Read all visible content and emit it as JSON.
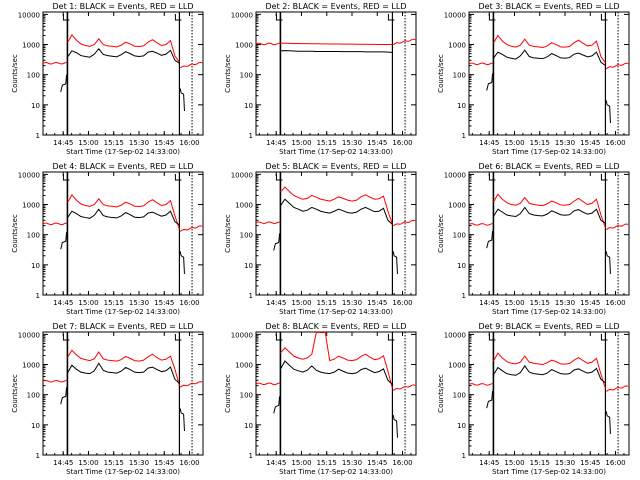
{
  "style": {
    "events_color": "#000000",
    "lld_color": "#ff0000",
    "axis_color": "#000000",
    "background": "#ffffff"
  },
  "chart_data": [
    {
      "type": "line",
      "title": "Det 1: BLACK = Events, RED = LLD",
      "xlabel": "Start Time (17-Sep-02 14:33:00)",
      "ylabel": "Counts/sec",
      "x_ticks": [
        "14:45",
        "15:00",
        "15:15",
        "15:30",
        "15:45",
        "16:00"
      ],
      "y_ticks": [
        "1",
        "10",
        "100",
        "1000",
        "10000"
      ],
      "xlim_minutes": [
        0,
        95
      ],
      "ylim": [
        1,
        12000
      ],
      "y_scale": "log",
      "markers_minutes": [
        14.5,
        81,
        88.5
      ],
      "pre_segment": {
        "events": 45,
        "lld": 240
      },
      "main_segment": {
        "events": [
          380,
          620,
          540,
          430,
          400,
          380,
          480,
          720,
          470,
          430,
          410,
          390,
          460,
          580,
          500,
          420,
          400,
          420,
          560,
          600,
          520,
          440,
          480,
          640,
          300,
          240
        ],
        "lld": [
          1150,
          2100,
          1400,
          1050,
          930,
          870,
          1000,
          1550,
          1000,
          900,
          880,
          830,
          950,
          1200,
          1050,
          880,
          860,
          900,
          1200,
          1450,
          1150,
          930,
          1000,
          1350,
          420,
          260
        ]
      },
      "post_segment": {
        "events": 25,
        "lld": 170
      }
    },
    {
      "type": "line",
      "title": "Det 2: BLACK = Events, RED = LLD",
      "xlabel": "Start Time (17-Sep-02 14:33:00)",
      "ylabel": "Counts/sec",
      "x_ticks": [
        "14:45",
        "15:00",
        "15:15",
        "15:30",
        "15:45",
        "16:00"
      ],
      "y_ticks": [
        "1",
        "10",
        "100",
        "1000",
        "10000"
      ],
      "xlim_minutes": [
        0,
        95
      ],
      "ylim": [
        1,
        12000
      ],
      "y_scale": "log",
      "markers_minutes": [
        14.5,
        81,
        88.5
      ],
      "pre_segment": {
        "events": 0,
        "lld": 1050
      },
      "main_segment": {
        "events": [
          620,
          630,
          620,
          610,
          600,
          600,
          600,
          600,
          590,
          590,
          590,
          590,
          590,
          590,
          580,
          580,
          580,
          580,
          580,
          570,
          570,
          570,
          570,
          570,
          560,
          550
        ],
        "lld": [
          1100,
          1100,
          1090,
          1080,
          1080,
          1070,
          1070,
          1060,
          1060,
          1050,
          1050,
          1040,
          1040,
          1040,
          1030,
          1030,
          1030,
          1020,
          1020,
          1020,
          1010,
          1010,
          1000,
          1000,
          1000,
          990
        ]
      },
      "post_segment": {
        "events": 0,
        "lld": 1000
      }
    },
    {
      "type": "line",
      "title": "Det 3: BLACK = Events, RED = LLD",
      "xlabel": "Start Time (17-Sep-02 14:33:00)",
      "ylabel": "Counts/sec",
      "x_ticks": [
        "14:45",
        "15:00",
        "15:15",
        "15:30",
        "15:45",
        "16:00"
      ],
      "y_ticks": [
        "1",
        "10",
        "100",
        "1000",
        "10000"
      ],
      "xlim_minutes": [
        0,
        95
      ],
      "ylim": [
        1,
        12000
      ],
      "y_scale": "log",
      "markers_minutes": [
        14.5,
        81,
        88.5
      ],
      "pre_segment": {
        "events": 50,
        "lld": 230
      },
      "main_segment": {
        "events": [
          350,
          560,
          470,
          380,
          350,
          330,
          420,
          650,
          400,
          360,
          350,
          340,
          390,
          500,
          430,
          360,
          350,
          370,
          480,
          520,
          450,
          390,
          420,
          560,
          260,
          200
        ],
        "lld": [
          1100,
          2000,
          1300,
          1000,
          880,
          820,
          950,
          1500,
          950,
          860,
          840,
          800,
          900,
          1150,
          1000,
          840,
          820,
          860,
          1150,
          1400,
          1100,
          900,
          950,
          1300,
          400,
          250
        ]
      },
      "post_segment": {
        "events": 10,
        "lld": 160
      }
    },
    {
      "type": "line",
      "title": "Det 4: BLACK = Events, RED = LLD",
      "xlabel": "Start Time (17-Sep-02 14:33:00)",
      "ylabel": "Counts/sec",
      "x_ticks": [
        "14:45",
        "15:00",
        "15:15",
        "15:30",
        "15:45",
        "16:00"
      ],
      "y_ticks": [
        "1",
        "10",
        "100",
        "1000",
        "10000"
      ],
      "xlim_minutes": [
        0,
        95
      ],
      "ylim": [
        1,
        12000
      ],
      "y_scale": "log",
      "markers_minutes": [
        14.5,
        81,
        88.5
      ],
      "pre_segment": {
        "events": 55,
        "lld": 230
      },
      "main_segment": {
        "events": [
          360,
          600,
          500,
          400,
          370,
          350,
          440,
          700,
          430,
          390,
          370,
          360,
          420,
          540,
          460,
          380,
          370,
          390,
          520,
          560,
          480,
          410,
          450,
          600,
          270,
          210
        ],
        "lld": [
          1150,
          2100,
          1400,
          1050,
          930,
          870,
          1000,
          1550,
          1000,
          900,
          880,
          830,
          950,
          1200,
          1050,
          880,
          860,
          900,
          1200,
          1450,
          1150,
          930,
          1000,
          1350,
          420,
          150
        ]
      },
      "post_segment": {
        "events": 20,
        "lld": 130
      }
    },
    {
      "type": "line",
      "title": "Det 5: BLACK = Events, RED = LLD",
      "xlabel": "Start Time (17-Sep-02 14:33:00)",
      "ylabel": "Counts/sec",
      "x_ticks": [
        "14:45",
        "15:00",
        "15:15",
        "15:30",
        "15:45",
        "16:00"
      ],
      "y_ticks": [
        "1",
        "10",
        "100",
        "1000",
        "10000"
      ],
      "xlim_minutes": [
        0,
        95
      ],
      "ylim": [
        1,
        12000
      ],
      "y_scale": "log",
      "markers_minutes": [
        14.5,
        81,
        88.5
      ],
      "pre_segment": {
        "events": 50,
        "lld": 250
      },
      "main_segment": {
        "events": [
          900,
          1500,
          1100,
          800,
          700,
          600,
          650,
          800,
          700,
          600,
          550,
          520,
          600,
          700,
          620,
          540,
          520,
          560,
          700,
          800,
          680,
          580,
          600,
          750,
          300,
          220
        ],
        "lld": [
          2600,
          3800,
          2700,
          2000,
          1700,
          1500,
          1600,
          2000,
          1750,
          1500,
          1400,
          1300,
          1500,
          1800,
          1600,
          1400,
          1300,
          1400,
          1800,
          2100,
          1750,
          1500,
          1550,
          1900,
          600,
          220
        ]
      },
      "post_segment": {
        "events": 20,
        "lld": 200
      }
    },
    {
      "type": "line",
      "title": "Det 6: BLACK = Events, RED = LLD",
      "xlabel": "Start Time (17-Sep-02 14:33:00)",
      "ylabel": "Counts/sec",
      "x_ticks": [
        "14:45",
        "15:00",
        "15:15",
        "15:30",
        "15:45",
        "16:00"
      ],
      "y_ticks": [
        "1",
        "10",
        "100",
        "1000",
        "10000"
      ],
      "xlim_minutes": [
        0,
        95
      ],
      "ylim": [
        1,
        12000
      ],
      "y_scale": "log",
      "markers_minutes": [
        14.5,
        81,
        88.5
      ],
      "pre_segment": {
        "events": 60,
        "lld": 220
      },
      "main_segment": {
        "events": [
          400,
          700,
          560,
          450,
          420,
          400,
          500,
          800,
          500,
          450,
          430,
          420,
          480,
          620,
          540,
          460,
          440,
          460,
          620,
          680,
          560,
          480,
          520,
          700,
          300,
          240
        ],
        "lld": [
          1200,
          2200,
          1500,
          1150,
          1000,
          950,
          1100,
          1700,
          1100,
          1000,
          960,
          920,
          1050,
          1300,
          1150,
          970,
          950,
          1000,
          1300,
          1600,
          1250,
          1000,
          1100,
          1500,
          450,
          170
        ]
      },
      "post_segment": {
        "events": 20,
        "lld": 150
      }
    },
    {
      "type": "line",
      "title": "Det 7: BLACK = Events, RED = LLD",
      "xlabel": "Start Time (17-Sep-02 14:33:00)",
      "ylabel": "Counts/sec",
      "x_ticks": [
        "14:45",
        "15:00",
        "15:15",
        "15:30",
        "15:45",
        "16:00"
      ],
      "y_ticks": [
        "1",
        "10",
        "100",
        "1000",
        "10000"
      ],
      "xlim_minutes": [
        0,
        95
      ],
      "ylim": [
        1,
        12000
      ],
      "y_scale": "log",
      "markers_minutes": [
        14.5,
        81,
        88.5
      ],
      "pre_segment": {
        "events": 80,
        "lld": 280
      },
      "main_segment": {
        "events": [
          520,
          950,
          700,
          560,
          520,
          500,
          620,
          1100,
          640,
          560,
          540,
          520,
          600,
          800,
          680,
          560,
          540,
          560,
          760,
          820,
          680,
          580,
          620,
          820,
          320,
          240
        ],
        "lld": [
          1700,
          3000,
          2100,
          1600,
          1450,
          1350,
          1550,
          2600,
          1550,
          1400,
          1350,
          1300,
          1450,
          1850,
          1600,
          1350,
          1300,
          1400,
          1800,
          2200,
          1700,
          1400,
          1500,
          1900,
          700,
          200
        ]
      },
      "post_segment": {
        "events": 25,
        "lld": 180
      }
    },
    {
      "type": "line",
      "title": "Det 8: BLACK = Events, RED = LLD",
      "xlabel": "Start Time (17-Sep-02 14:33:00)",
      "ylabel": "Counts/sec",
      "x_ticks": [
        "14:45",
        "15:00",
        "15:15",
        "15:30",
        "15:45",
        "16:00"
      ],
      "y_ticks": [
        "1",
        "10",
        "100",
        "1000",
        "10000"
      ],
      "xlim_minutes": [
        0,
        95
      ],
      "ylim": [
        1,
        12000
      ],
      "y_scale": "log",
      "markers_minutes": [
        14.5,
        81,
        88.5
      ],
      "pre_segment": {
        "events": 40,
        "lld": 230
      },
      "main_segment": {
        "events": [
          700,
          1300,
          950,
          700,
          620,
          560,
          650,
          900,
          650,
          560,
          520,
          500,
          560,
          700,
          600,
          520,
          500,
          530,
          680,
          760,
          640,
          540,
          580,
          720,
          300,
          220
        ],
        "lld": [
          2400,
          3600,
          2600,
          1900,
          1650,
          1500,
          1650,
          2200,
          11500,
          11500,
          11500,
          1350,
          1500,
          1900,
          1650,
          1400,
          1350,
          1450,
          1850,
          2200,
          1750,
          1450,
          1550,
          1950,
          600,
          160
        ]
      },
      "post_segment": {
        "events": 15,
        "lld": 140
      }
    },
    {
      "type": "line",
      "title": "Det 9: BLACK = Events, RED = LLD",
      "xlabel": "Start Time (17-Sep-02 14:33:00)",
      "ylabel": "Counts/sec",
      "x_ticks": [
        "14:45",
        "15:00",
        "15:15",
        "15:30",
        "15:45",
        "16:00"
      ],
      "y_ticks": [
        "1",
        "10",
        "100",
        "1000",
        "10000"
      ],
      "xlim_minutes": [
        0,
        95
      ],
      "ylim": [
        1,
        12000
      ],
      "y_scale": "log",
      "markers_minutes": [
        14.5,
        81,
        88.5
      ],
      "pre_segment": {
        "events": 60,
        "lld": 220
      },
      "main_segment": {
        "events": [
          450,
          800,
          620,
          500,
          460,
          440,
          540,
          900,
          560,
          500,
          480,
          460,
          520,
          680,
          580,
          500,
          480,
          500,
          660,
          720,
          600,
          520,
          560,
          740,
          320,
          250
        ],
        "lld": [
          1300,
          2400,
          1650,
          1250,
          1100,
          1050,
          1200,
          1900,
          1200,
          1100,
          1050,
          1000,
          1150,
          1400,
          1250,
          1050,
          1030,
          1080,
          1400,
          1700,
          1350,
          1100,
          1200,
          1600,
          480,
          160
        ]
      },
      "post_segment": {
        "events": 20,
        "lld": 130
      }
    }
  ]
}
